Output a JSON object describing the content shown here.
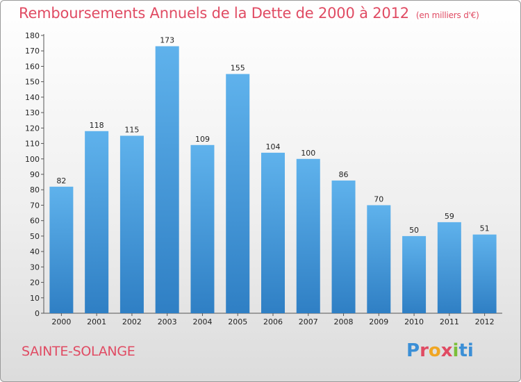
{
  "chart_data": {
    "type": "bar",
    "title": "Remboursements Annuels de la Dette de 2000 à 2012",
    "subtitle": "(en milliers d'€)",
    "categories": [
      "2000",
      "2001",
      "2002",
      "2003",
      "2004",
      "2005",
      "2006",
      "2007",
      "2008",
      "2009",
      "2010",
      "2011",
      "2012"
    ],
    "values": [
      82,
      118,
      115,
      173,
      109,
      155,
      104,
      100,
      86,
      70,
      50,
      59,
      51
    ],
    "ylim": [
      0,
      180
    ],
    "yticks": [
      0,
      10,
      20,
      30,
      40,
      50,
      60,
      70,
      80,
      90,
      100,
      110,
      120,
      130,
      140,
      150,
      160,
      170,
      180
    ],
    "grid": false,
    "bar_color": "#4a9fdf"
  },
  "footer": {
    "place": "SAINTE-SOLANGE",
    "brand": "Proxiti"
  },
  "colors": {
    "title": "#e04b63",
    "brand": [
      "#3b8fd6",
      "#e04b63",
      "#f0a623",
      "#e04b63",
      "#7bbf3a",
      "#3b8fd6",
      "#3b8fd6"
    ]
  }
}
